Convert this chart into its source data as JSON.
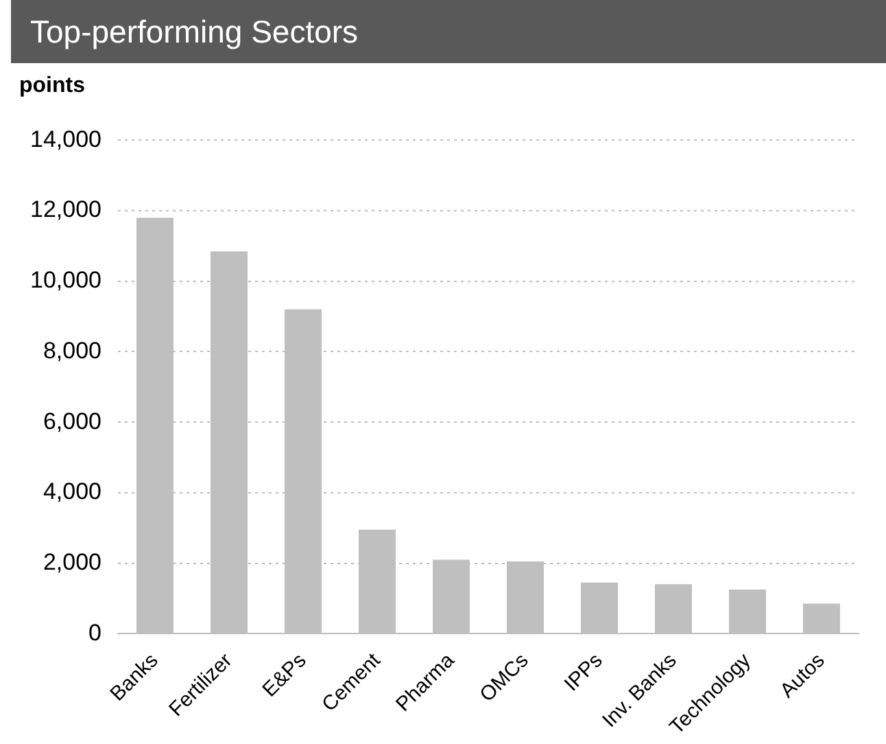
{
  "chart_data": {
    "type": "bar",
    "title": "Top-performing Sectors",
    "ylabel": "points",
    "categories": [
      "Banks",
      "Fertilizer",
      "E&Ps",
      "Cement",
      "Pharma",
      "OMCs",
      "IPPs",
      "Inv. Banks",
      "Technology",
      "Autos"
    ],
    "values": [
      11800,
      10850,
      9200,
      2950,
      2100,
      2050,
      1450,
      1400,
      1250,
      850
    ],
    "color": "#bfbfbf",
    "ylim": [
      0,
      14000
    ],
    "yticks": [
      0,
      {
        "value": 2000,
        "label": "2,000"
      },
      {
        "value": 4000,
        "label": "4,000"
      },
      {
        "value": 6000,
        "label": "6,000"
      },
      {
        "value": 8000,
        "label": "8,000"
      },
      {
        "value": 10000,
        "label": "10,000"
      },
      {
        "value": 12000,
        "label": "12,000"
      },
      {
        "value": 14000,
        "label": "14,000"
      }
    ],
    "grid": "y",
    "legend": false
  }
}
